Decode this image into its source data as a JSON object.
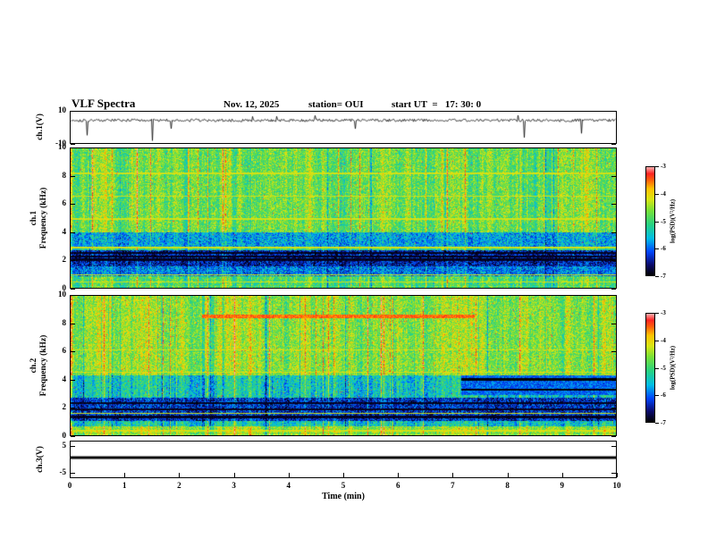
{
  "header": {
    "title": "VLF Spectra",
    "date": "Nov. 12, 2025",
    "station": "station= OUI",
    "start_ut_label": "start UT  =   17: 30: 0"
  },
  "xaxis": {
    "label": "Time (min)",
    "range": [
      0,
      10
    ],
    "ticks": [
      0,
      1,
      2,
      3,
      4,
      5,
      6,
      7,
      8,
      9,
      10
    ]
  },
  "colorbar": {
    "label": "log(PSD)(V²/Hz)",
    "range": [
      -3,
      -7
    ],
    "ticks": [
      -3,
      -4,
      -5,
      -6,
      -7
    ]
  },
  "chart_data": [
    {
      "type": "line",
      "id": "ch1_volt",
      "ylabel": "ch.1(V)",
      "ylim": [
        -10,
        10
      ],
      "yticks": [
        10,
        -10
      ],
      "baseline": 4.5,
      "noise_amp": 0.9,
      "spike_prob": 0.012,
      "seed": 101
    },
    {
      "type": "heatmap",
      "id": "ch1_spec",
      "ylabel_lines": [
        "ch.1",
        "Frequency (kHz)"
      ],
      "ylim": [
        0,
        10
      ],
      "yticks": [
        0,
        2,
        4,
        6,
        8,
        10
      ],
      "value_range": [
        -7,
        -3
      ],
      "base_level": -4.7,
      "seed": 202,
      "bands": [
        {
          "f0": 4.0,
          "f1": 10.01,
          "level": -4.7
        },
        {
          "f0": 3.0,
          "f1": 4.0,
          "level": -5.7
        },
        {
          "f0": 2.7,
          "f1": 3.0,
          "level": -5.1
        },
        {
          "f0": 1.55,
          "f1": 2.7,
          "level": -6.4
        },
        {
          "f0": 0.85,
          "f1": 1.55,
          "level": -5.9
        },
        {
          "f0": 0.0,
          "f1": 0.85,
          "level": -4.9
        }
      ],
      "dark_lines": [
        2.05,
        2.3,
        2.55
      ],
      "bright_lines": [
        8.25,
        6.6,
        4.95,
        2.9,
        0.95,
        0.45
      ],
      "features": {
        "speck_prob": 0.0035,
        "speck_fmin": 3.2
      }
    },
    {
      "type": "heatmap",
      "id": "ch2_spec",
      "ylabel_lines": [
        "ch.2",
        "Frequency (kHz)"
      ],
      "ylim": [
        0,
        10
      ],
      "yticks": [
        0,
        2,
        4,
        6,
        8,
        10
      ],
      "value_range": [
        -7,
        -3
      ],
      "base_level": -4.55,
      "seed": 303,
      "bands": [
        {
          "f0": 4.3,
          "f1": 10.01,
          "level": -4.55
        },
        {
          "f0": 2.75,
          "f1": 4.3,
          "level": -5.4
        },
        {
          "f0": 1.05,
          "f1": 2.75,
          "level": -6.3
        },
        {
          "f0": 0.7,
          "f1": 1.05,
          "level": -5.4
        },
        {
          "f0": 0.0,
          "f1": 0.7,
          "level": -4.5
        }
      ],
      "dark_lines": [
        1.35,
        1.9,
        2.35
      ],
      "bright_lines": [
        6.15,
        4.55,
        1.6,
        0.35
      ],
      "features": {
        "speck_prob": 0.005,
        "speck_fmin": 2.8,
        "red_line": {
          "f": 8.55,
          "t0": 2.4,
          "t1": 7.4,
          "level": -3.5,
          "halfwidth": 0.15
        },
        "blue_patch": {
          "t0": 7.15,
          "t1": 10.01,
          "f0": 2.9,
          "f1": 4.35,
          "level": -6.0
        },
        "patch_dark_lines": [
          3.3,
          4.05
        ]
      }
    },
    {
      "type": "line",
      "id": "ch3_volt",
      "ylabel": "ch.3(V)",
      "ylim": [
        -7,
        7
      ],
      "yticks": [
        5,
        -5
      ],
      "baseline": 0.7,
      "noise_amp": 0,
      "spike_prob": 0,
      "thick": 3,
      "seed": 404
    }
  ]
}
